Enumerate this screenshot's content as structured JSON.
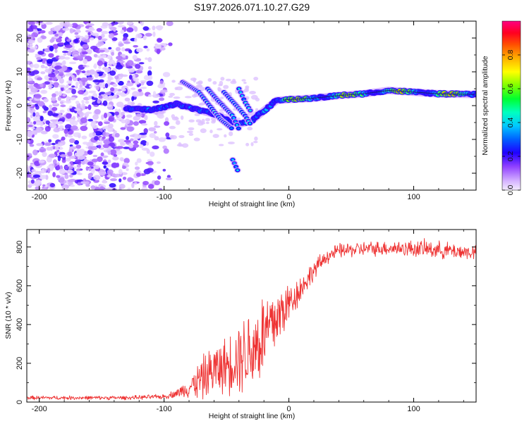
{
  "title": "S197.2026.071.10.27.G29",
  "chart_data": [
    {
      "type": "heatmap",
      "xlabel": "Height of straight line (km)",
      "ylabel": "Frequency (Hz)",
      "xlim": [
        -210,
        150
      ],
      "ylim": [
        -25,
        25
      ],
      "xticks": [
        -200,
        -100,
        0,
        100
      ],
      "yticks": [
        -20,
        -10,
        0,
        10,
        20
      ],
      "colorbar": {
        "label": "Normalized spectral amplitude",
        "range": [
          0,
          1
        ],
        "ticks": [
          0.0,
          0.2,
          0.4,
          0.6,
          0.8
        ],
        "tick_labels": [
          "0.0",
          "0.2",
          "0.4",
          "0.6",
          "0.8"
        ]
      },
      "ridge": [
        {
          "x": -130,
          "y": -1.0
        },
        {
          "x": -110,
          "y": -1.2
        },
        {
          "x": -100,
          "y": -0.5
        },
        {
          "x": -90,
          "y": 0.5
        },
        {
          "x": -80,
          "y": -0.5
        },
        {
          "x": -70,
          "y": -1.5
        },
        {
          "x": -60,
          "y": -2.5
        },
        {
          "x": -50,
          "y": -4.0
        },
        {
          "x": -40,
          "y": -5.5
        },
        {
          "x": -30,
          "y": -4.5
        },
        {
          "x": -20,
          "y": -1.5
        },
        {
          "x": -10,
          "y": 1.5
        },
        {
          "x": 0,
          "y": 1.8
        },
        {
          "x": 20,
          "y": 2.2
        },
        {
          "x": 40,
          "y": 3.0
        },
        {
          "x": 60,
          "y": 3.5
        },
        {
          "x": 80,
          "y": 4.5
        },
        {
          "x": 100,
          "y": 4.0
        },
        {
          "x": 120,
          "y": 3.5
        },
        {
          "x": 150,
          "y": 3.3
        }
      ],
      "branches": [
        {
          "points": [
            {
              "x": -85,
              "y": 7
            },
            {
              "x": -72,
              "y": 4
            },
            {
              "x": -55,
              "y": -4
            },
            {
              "x": -45,
              "y": -7
            }
          ]
        },
        {
          "points": [
            {
              "x": -65,
              "y": 5
            },
            {
              "x": -58,
              "y": 2
            },
            {
              "x": -45,
              "y": -3
            },
            {
              "x": -40,
              "y": -7
            }
          ]
        },
        {
          "points": [
            {
              "x": -52,
              "y": 4
            },
            {
              "x": -42,
              "y": 0
            },
            {
              "x": -35,
              "y": -3
            },
            {
              "x": -30,
              "y": -6
            }
          ]
        },
        {
          "points": [
            {
              "x": -40,
              "y": 5
            },
            {
              "x": -35,
              "y": 1
            },
            {
              "x": -30,
              "y": -2
            }
          ]
        },
        {
          "points": [
            {
              "x": -45,
              "y": -16
            },
            {
              "x": -40,
              "y": -20
            }
          ]
        }
      ],
      "noise_region": {
        "x": [
          -210,
          -95
        ],
        "y": [
          -25,
          25
        ]
      }
    },
    {
      "type": "line",
      "xlabel": "Height of straight line (km)",
      "ylabel": "SNR (10 * v/v)",
      "xlim": [
        -210,
        150
      ],
      "ylim": [
        0,
        890
      ],
      "xticks": [
        -200,
        -100,
        0,
        100
      ],
      "yticks": [
        0,
        200,
        400,
        600,
        800
      ],
      "color": "#ee3333",
      "envelope": [
        {
          "x": -210,
          "mean": 22,
          "amp": 12
        },
        {
          "x": -130,
          "mean": 22,
          "amp": 12
        },
        {
          "x": -100,
          "mean": 28,
          "amp": 15
        },
        {
          "x": -90,
          "mean": 45,
          "amp": 25
        },
        {
          "x": -80,
          "mean": 75,
          "amp": 60
        },
        {
          "x": -70,
          "mean": 120,
          "amp": 130
        },
        {
          "x": -60,
          "mean": 165,
          "amp": 160
        },
        {
          "x": -50,
          "mean": 190,
          "amp": 170
        },
        {
          "x": -40,
          "mean": 240,
          "amp": 230
        },
        {
          "x": -30,
          "mean": 270,
          "amp": 270
        },
        {
          "x": -20,
          "mean": 340,
          "amp": 290
        },
        {
          "x": -10,
          "mean": 430,
          "amp": 220
        },
        {
          "x": 0,
          "mean": 510,
          "amp": 130
        },
        {
          "x": 10,
          "mean": 590,
          "amp": 80
        },
        {
          "x": 20,
          "mean": 680,
          "amp": 60
        },
        {
          "x": 30,
          "mean": 750,
          "amp": 45
        },
        {
          "x": 40,
          "mean": 780,
          "amp": 45
        },
        {
          "x": 60,
          "mean": 790,
          "amp": 45
        },
        {
          "x": 80,
          "mean": 795,
          "amp": 45
        },
        {
          "x": 110,
          "mean": 790,
          "amp": 55
        },
        {
          "x": 150,
          "mean": 770,
          "amp": 45
        }
      ]
    }
  ]
}
